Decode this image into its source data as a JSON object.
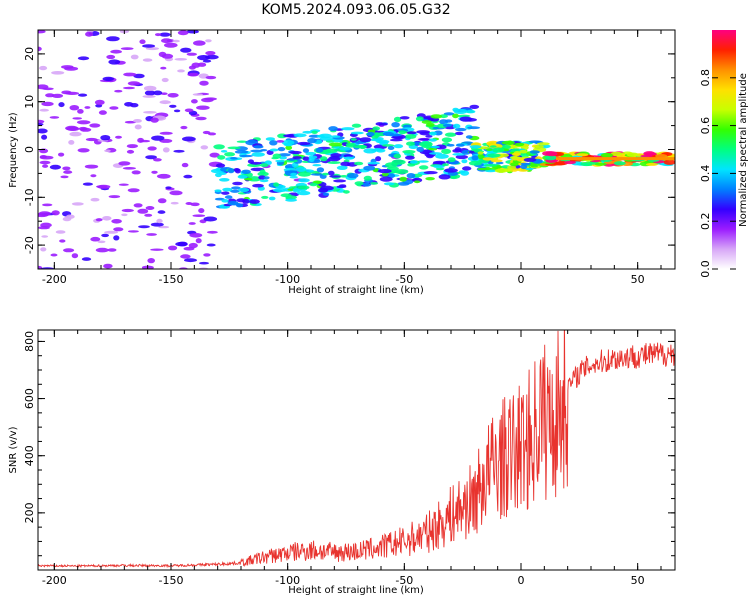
{
  "figure_title": "KOM5.2024.093.06.05.G32",
  "chart_data": [
    {
      "type": "heatmap",
      "xlabel": "Height of straight line (km)",
      "ylabel": "Frequency (Hz)",
      "xlim": [
        -207,
        66
      ],
      "ylim": [
        -25,
        25
      ],
      "xticks": [
        -200,
        -150,
        -100,
        -50,
        0,
        50
      ],
      "yticks": [
        -20,
        -10,
        0,
        10,
        20
      ],
      "colorbar": {
        "label": "Normalized spectral amplitude",
        "range": [
          0,
          1
        ],
        "ticks": [
          "0.0",
          "0.2",
          "0.4",
          "0.6",
          "0.8"
        ],
        "colormap": [
          "#ffffff",
          "#d7a6f7",
          "#9b1cff",
          "#3300ff",
          "#0080ff",
          "#00e5ff",
          "#00ff80",
          "#33ff00",
          "#c8ff00",
          "#ffe000",
          "#ff9000",
          "#ff2000",
          "#ff0080"
        ]
      },
      "features": [
        {
          "x_range": [
            -207,
            -130
          ],
          "freq_range": [
            -25,
            25
          ],
          "amplitude": 0.15
        },
        {
          "x_range": [
            -130,
            -20
          ],
          "freq_center": [
            -6,
            2
          ],
          "amplitude": 0.4
        },
        {
          "x_range": [
            -20,
            10
          ],
          "freq_center": [
            -2,
            -1
          ],
          "amplitude": 0.55
        },
        {
          "x_range": [
            10,
            66
          ],
          "freq_center": [
            -2,
            -2
          ],
          "amplitude": 0.85
        }
      ]
    },
    {
      "type": "line",
      "xlabel": "Height of straight line (km)",
      "ylabel": "SNR (v/v)",
      "xlim": [
        -207,
        66
      ],
      "ylim": [
        0,
        840
      ],
      "xticks": [
        -200,
        -150,
        -100,
        -50,
        0,
        50
      ],
      "yticks": [
        200,
        400,
        600,
        800
      ],
      "line_color": "#e8332e",
      "series": [
        {
          "x": [
            -207,
            -190,
            -170,
            -150,
            -130,
            -120,
            -110,
            -100,
            -90,
            -80,
            -70,
            -60,
            -50,
            -40,
            -30,
            -20,
            -15,
            -10,
            -5,
            0,
            5,
            9,
            10,
            15,
            20,
            25,
            30,
            40,
            50,
            60,
            66
          ],
          "y": [
            15,
            14,
            16,
            15,
            20,
            25,
            45,
            60,
            70,
            62,
            65,
            80,
            100,
            130,
            190,
            250,
            330,
            380,
            400,
            430,
            470,
            560,
            520,
            540,
            640,
            690,
            720,
            740,
            750,
            755,
            760
          ]
        }
      ]
    }
  ]
}
